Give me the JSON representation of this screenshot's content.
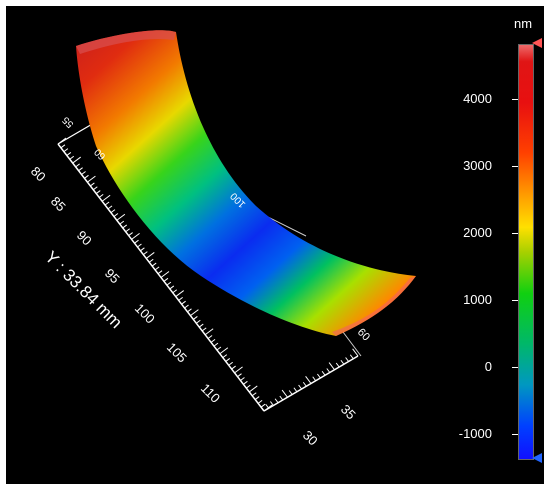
{
  "colorbar": {
    "unit": "nm",
    "ticks": [
      "4000",
      "3000",
      "2000",
      "1000",
      "0",
      "-1000"
    ]
  },
  "y_axis": {
    "label": "Y : 33.84 mm",
    "ticks": [
      "80",
      "85",
      "90",
      "95",
      "100",
      "105",
      "110"
    ]
  },
  "x_axis": {
    "ticks": [
      "30",
      "35"
    ]
  },
  "surface_axis_labels": [
    "55",
    "60",
    "100",
    "09"
  ]
}
